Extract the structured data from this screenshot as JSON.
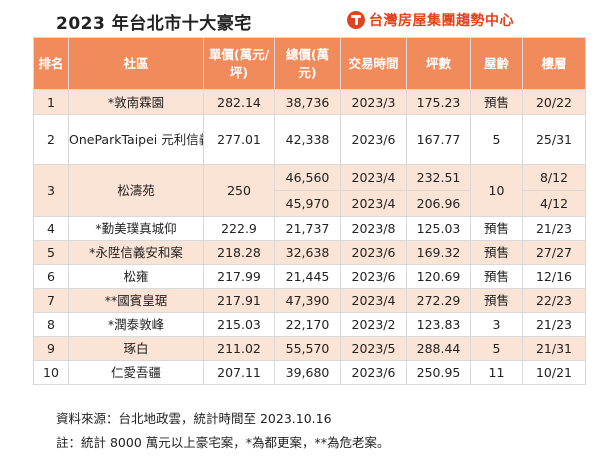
{
  "title": "2023 年台北市十大豪宅",
  "brand": "台灣房屋集團趨勢中心",
  "colors": {
    "header_bg": "#f28b5c",
    "row_tint": "#fbe4d5",
    "brand": "#e0431e"
  },
  "headers": {
    "rank": "排名",
    "community": "社區",
    "unit_price": "單價(萬元/坪)",
    "total_price": "總價(萬元)",
    "trade_time": "交易時間",
    "area": "坪數",
    "age": "屋齡",
    "floor": "樓層"
  },
  "rows": [
    {
      "rank": "1",
      "community": "*敦南霖園",
      "unit_price": "282.14",
      "total_price": "38,736",
      "trade_time": "2023/3",
      "area": "175.23",
      "age": "預售",
      "floor": "20/22"
    },
    {
      "rank": "2",
      "community": "OneParkTaipei 元利信義聯勤",
      "unit_price": "277.01",
      "total_price": "42,338",
      "trade_time": "2023/6",
      "area": "167.77",
      "age": "5",
      "floor": "25/31"
    },
    {
      "rank": "3",
      "community": "松濤苑",
      "unit_price": "250",
      "sub": [
        {
          "total_price": "46,560",
          "trade_time": "2023/4",
          "area": "232.51",
          "floor": "8/12"
        },
        {
          "total_price": "45,970",
          "trade_time": "2023/4",
          "area": "206.96",
          "floor": "4/12"
        }
      ],
      "age": "10"
    },
    {
      "rank": "4",
      "community": "*勤美璞真城仰",
      "unit_price": "222.9",
      "total_price": "21,737",
      "trade_time": "2023/8",
      "area": "125.03",
      "age": "預售",
      "floor": "21/23"
    },
    {
      "rank": "5",
      "community": "*永陞信義安和案",
      "unit_price": "218.28",
      "total_price": "32,638",
      "trade_time": "2023/6",
      "area": "169.32",
      "age": "預售",
      "floor": "27/27"
    },
    {
      "rank": "6",
      "community": "松雍",
      "unit_price": "217.99",
      "total_price": "21,445",
      "trade_time": "2023/6",
      "area": "120.69",
      "age": "預售",
      "floor": "12/16"
    },
    {
      "rank": "7",
      "community": "**國賓皇琚",
      "unit_price": "217.91",
      "total_price": "47,390",
      "trade_time": "2023/4",
      "area": "272.29",
      "age": "預售",
      "floor": "22/23"
    },
    {
      "rank": "8",
      "community": "*潤泰敦峰",
      "unit_price": "215.03",
      "total_price": "22,170",
      "trade_time": "2023/2",
      "area": "123.83",
      "age": "3",
      "floor": "21/23"
    },
    {
      "rank": "9",
      "community": "琢白",
      "unit_price": "211.02",
      "total_price": "55,570",
      "trade_time": "2023/5",
      "area": "288.44",
      "age": "5",
      "floor": "21/31"
    },
    {
      "rank": "10",
      "community": "仁愛吾疆",
      "unit_price": "207.11",
      "total_price": "39,680",
      "trade_time": "2023/6",
      "area": "250.95",
      "age": "11",
      "floor": "10/21"
    }
  ],
  "source": "資料來源：台北地政雲，統計時間至 2023.10.16",
  "note": "註：統計 8000 萬元以上豪宅案，*為都更案，**為危老案。"
}
